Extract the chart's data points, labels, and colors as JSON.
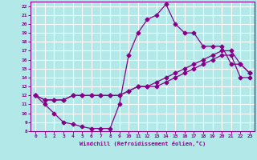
{
  "xlabel": "Windchill (Refroidissement éolien,°C)",
  "bg_color": "#b3e8e8",
  "grid_color": "#ffffff",
  "line_color": "#880088",
  "xlim": [
    -0.5,
    23.5
  ],
  "ylim": [
    8,
    22.5
  ],
  "xticks": [
    0,
    1,
    2,
    3,
    4,
    5,
    6,
    7,
    8,
    9,
    10,
    11,
    12,
    13,
    14,
    15,
    16,
    17,
    18,
    19,
    20,
    21,
    22,
    23
  ],
  "yticks": [
    8,
    9,
    10,
    11,
    12,
    13,
    14,
    15,
    16,
    17,
    18,
    19,
    20,
    21,
    22
  ],
  "curve1_x": [
    0,
    1,
    2,
    3,
    4,
    5,
    6,
    7,
    8,
    9,
    10,
    11,
    12,
    13,
    14,
    15,
    16,
    17,
    18,
    19,
    20,
    21,
    22,
    23
  ],
  "curve1_y": [
    12,
    11,
    10,
    9,
    8.8,
    8.5,
    8.3,
    8.3,
    8.3,
    11,
    16.5,
    19,
    20.5,
    21,
    22.2,
    20,
    19,
    19,
    17.5,
    17.5,
    17.5,
    15.5,
    15.5,
    14.5
  ],
  "curve2_x": [
    0,
    1,
    2,
    3,
    4,
    5,
    6,
    7,
    8,
    9,
    10,
    11,
    12,
    13,
    14,
    15,
    16,
    17,
    18,
    19,
    20,
    21,
    22,
    23
  ],
  "curve2_y": [
    12,
    11.5,
    11.5,
    11.5,
    12,
    12,
    12,
    12,
    12,
    12,
    12.5,
    13,
    13,
    13.5,
    14,
    14.5,
    15,
    15.5,
    16,
    16.5,
    17,
    17,
    15.5,
    14.5
  ],
  "curve3_x": [
    0,
    1,
    2,
    3,
    4,
    5,
    6,
    7,
    8,
    9,
    10,
    11,
    12,
    13,
    14,
    15,
    16,
    17,
    18,
    19,
    20,
    21,
    22,
    23
  ],
  "curve3_y": [
    12,
    11.5,
    11.5,
    11.5,
    12,
    12,
    12,
    12,
    12,
    12,
    12.5,
    13,
    13,
    13,
    13.5,
    14,
    14.5,
    15,
    15.5,
    16,
    16.5,
    16.5,
    14,
    14
  ]
}
